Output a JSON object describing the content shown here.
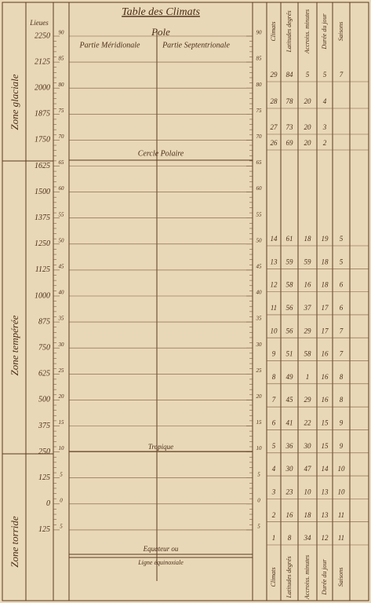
{
  "header": {
    "title": "Table des Climats",
    "pole": "Pole",
    "south": "Partie Méridionale",
    "north": "Partie Septentrionale",
    "leagues": "Lieues"
  },
  "zones": [
    "Zone glaciale",
    "Zone tempérée",
    "Zone torride"
  ],
  "lines": {
    "polar": "Cercle Polaire",
    "tropic": "Tropique",
    "equator": "Equateur ou",
    "equinoctial": "Ligne équinoxiale"
  },
  "leagues_scale": [
    2250,
    2125,
    2000,
    1875,
    1750,
    1625,
    1500,
    1375,
    1250,
    1125,
    1000,
    875,
    750,
    625,
    500,
    375,
    250,
    125,
    0,
    125
  ],
  "latitude_scale": [
    90,
    85,
    80,
    75,
    70,
    65,
    60,
    55,
    50,
    45,
    40,
    35,
    30,
    25,
    20,
    15,
    10,
    5,
    0,
    5
  ],
  "table": {
    "columns": [
      "Climats",
      "Latitudes degrés",
      "Accroiss. minutes",
      "Durée du jour",
      "Saisons"
    ],
    "rows": [
      [
        "29",
        "84",
        "5",
        "5",
        "7"
      ],
      [
        "28",
        "78",
        "20",
        "4",
        ""
      ],
      [
        "27",
        "73",
        "20",
        "3",
        ""
      ],
      [
        "26",
        "69",
        "20",
        "2",
        ""
      ],
      [
        "14",
        "61",
        "18",
        "19",
        "5"
      ],
      [
        "13",
        "59",
        "59",
        "18",
        "5"
      ],
      [
        "12",
        "58",
        "16",
        "18",
        "6"
      ],
      [
        "11",
        "56",
        "37",
        "17",
        "6"
      ],
      [
        "10",
        "56",
        "29",
        "17",
        "7"
      ],
      [
        "9",
        "51",
        "58",
        "16",
        "7"
      ],
      [
        "8",
        "49",
        "1",
        "16",
        "8"
      ],
      [
        "7",
        "45",
        "29",
        "16",
        "8"
      ],
      [
        "6",
        "41",
        "22",
        "15",
        "9"
      ],
      [
        "5",
        "36",
        "30",
        "15",
        "9"
      ],
      [
        "4",
        "30",
        "47",
        "14",
        "10"
      ],
      [
        "3",
        "23",
        "10",
        "13",
        "10"
      ],
      [
        "2",
        "16",
        "18",
        "13",
        "11"
      ],
      [
        "1",
        "8",
        "34",
        "12",
        "11"
      ]
    ]
  }
}
